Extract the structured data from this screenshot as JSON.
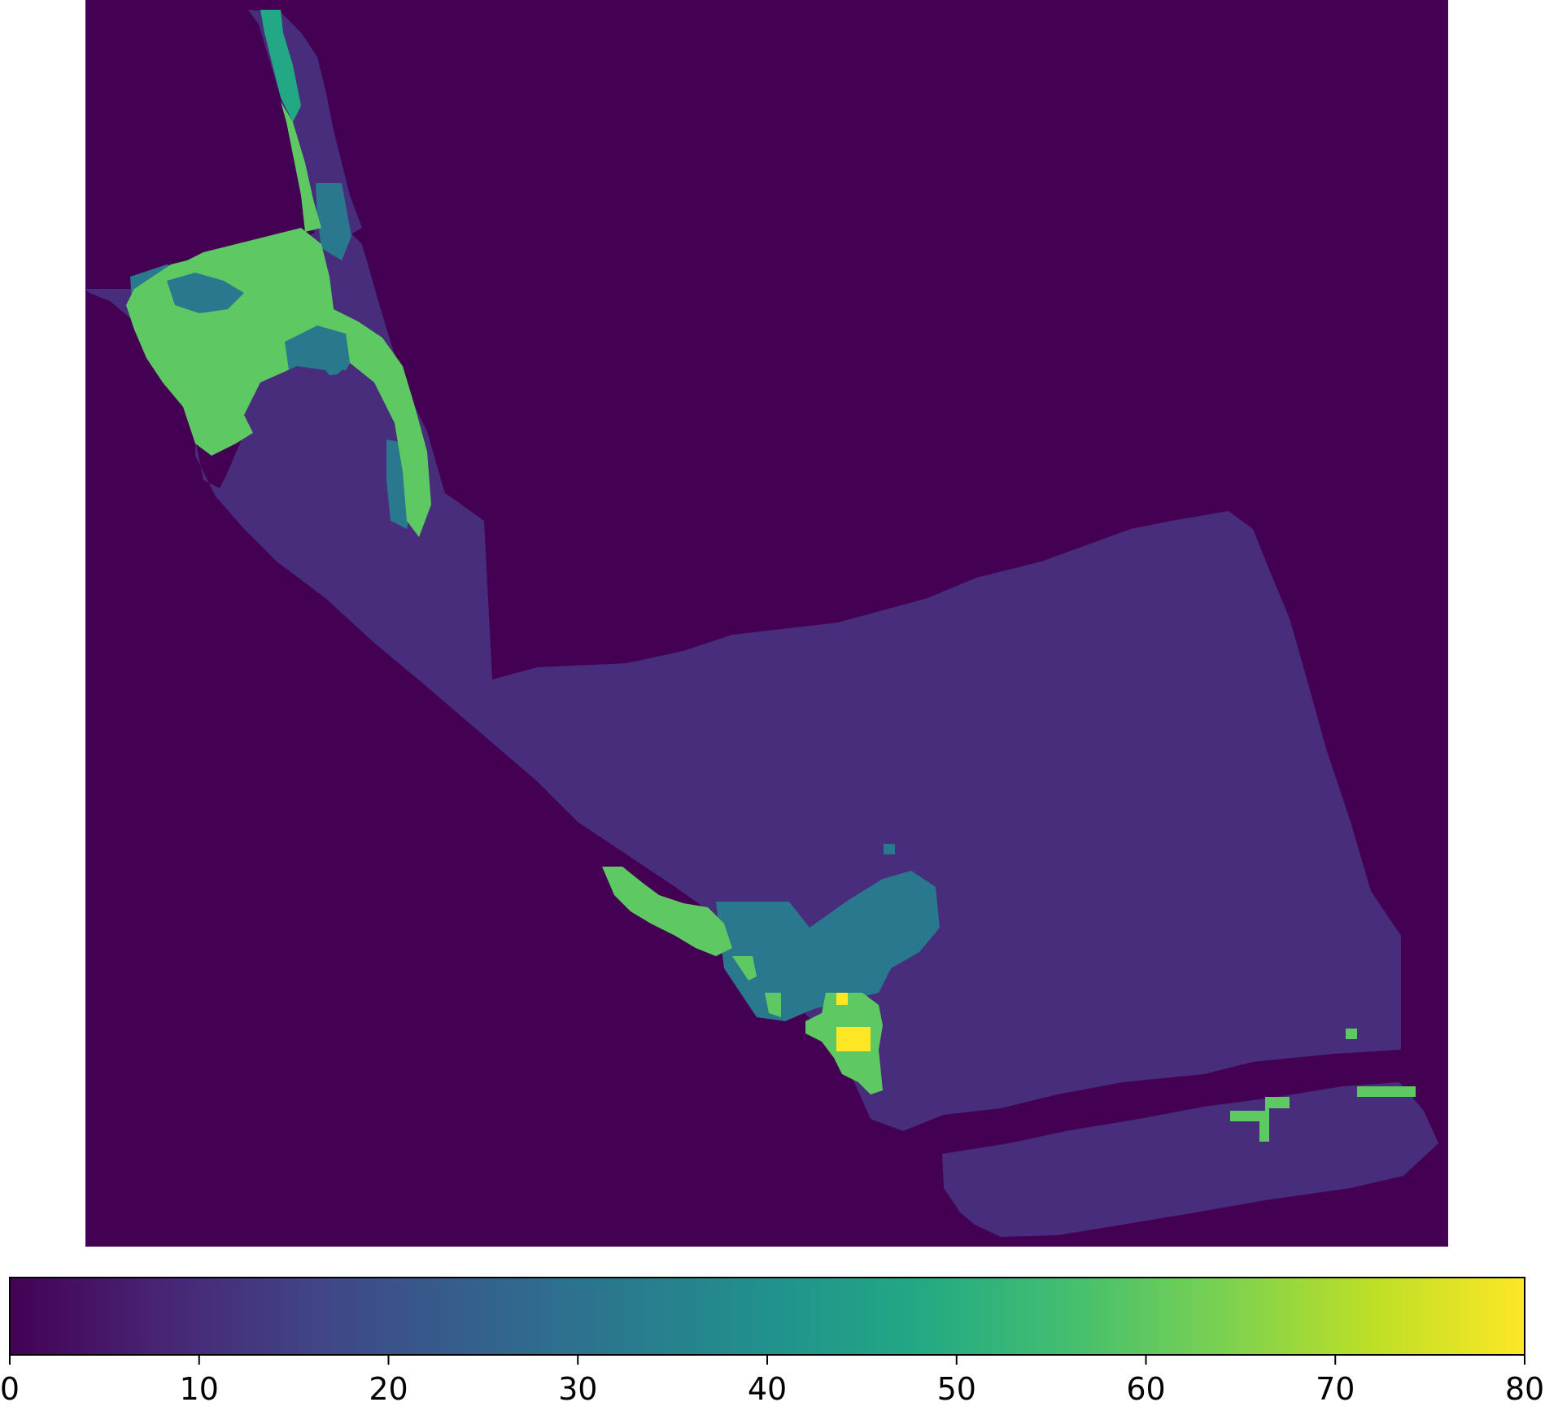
{
  "chart_data": {
    "type": "heatmap",
    "colormap": "viridis",
    "colorbar": {
      "orientation": "horizontal",
      "placement": "bottom",
      "range": [
        0,
        80
      ],
      "ticks": [
        0,
        10,
        20,
        30,
        40,
        50,
        60,
        70,
        80
      ],
      "tick_labels": [
        "0",
        "10",
        "20",
        "30",
        "40",
        "50",
        "60",
        "70",
        "80"
      ]
    },
    "grid": false,
    "axes_visible": false,
    "background_value": 0,
    "regions": [
      {
        "value": 0,
        "description": "background"
      },
      {
        "value": 14,
        "description": "main body"
      },
      {
        "value": 12,
        "description": "north arm lower portion"
      },
      {
        "value": 14,
        "description": "south strip"
      },
      {
        "value": 28,
        "description": "north-west patches"
      },
      {
        "value": 29,
        "description": "south-central patch"
      },
      {
        "value": 46,
        "description": "north arm teal cells"
      },
      {
        "value": 60,
        "description": "north-west green band"
      },
      {
        "value": 61,
        "description": "south-west green band"
      },
      {
        "value": 62,
        "description": "south-east green strips"
      },
      {
        "value": 78,
        "description": "yellow hotspot"
      }
    ]
  }
}
